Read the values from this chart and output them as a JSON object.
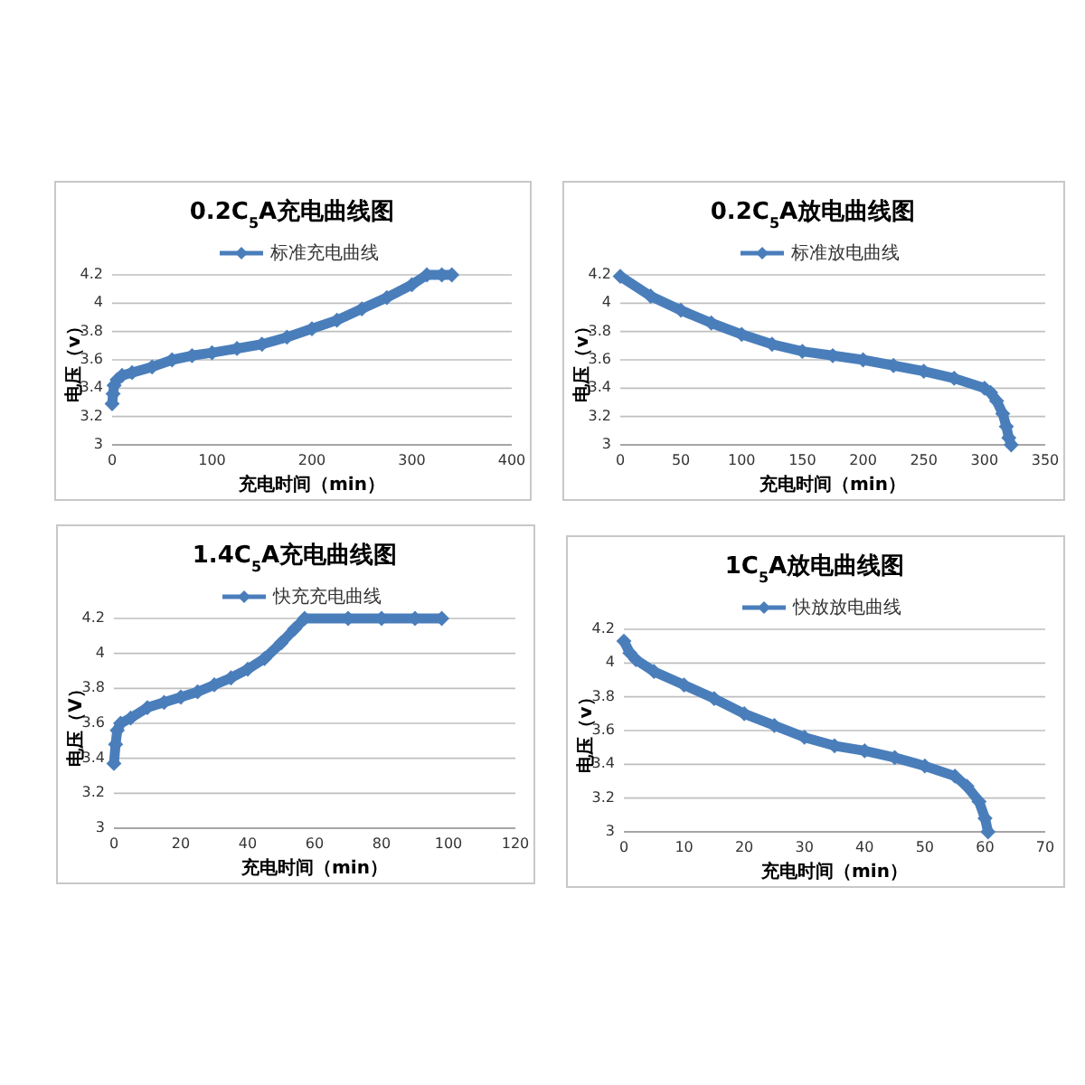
{
  "chart_data": [
    {
      "type": "line",
      "title": "0.2C$_{5}$A充电曲线图",
      "xlabel": "充电时间（min）",
      "ylabel": "电压（v）",
      "x": [
        0,
        1,
        2,
        5,
        10,
        20,
        40,
        60,
        80,
        100,
        125,
        150,
        175,
        200,
        225,
        250,
        275,
        300,
        315,
        330,
        340
      ],
      "series": [
        {
          "name": "标准充电曲线",
          "color": "#4a7ebb",
          "values": [
            3.29,
            3.36,
            3.42,
            3.46,
            3.49,
            3.51,
            3.55,
            3.6,
            3.63,
            3.65,
            3.68,
            3.71,
            3.76,
            3.82,
            3.88,
            3.96,
            4.04,
            4.13,
            4.2,
            4.2,
            4.2
          ]
        }
      ],
      "xlim": [
        0,
        400
      ],
      "xticks": [
        0,
        100,
        200,
        300,
        400
      ],
      "ylim": [
        3,
        4.2
      ],
      "yticks": [
        3,
        3.2,
        3.4,
        3.6,
        3.8,
        4,
        4.2
      ],
      "grid": "y",
      "legend": "top",
      "marker": "diamond"
    },
    {
      "type": "line",
      "title": "0.2C$_{5}$A放电曲线图",
      "xlabel": "充电时间（min）",
      "ylabel": "电压（v）",
      "x": [
        0,
        25,
        50,
        75,
        100,
        125,
        150,
        175,
        200,
        225,
        250,
        275,
        300,
        305,
        310,
        315,
        318,
        320,
        322
      ],
      "series": [
        {
          "name": "标准放电曲线",
          "color": "#4a7ebb",
          "values": [
            4.19,
            4.05,
            3.95,
            3.86,
            3.78,
            3.71,
            3.66,
            3.63,
            3.6,
            3.56,
            3.52,
            3.47,
            3.4,
            3.37,
            3.31,
            3.22,
            3.13,
            3.05,
            3.0
          ]
        }
      ],
      "xlim": [
        0,
        350
      ],
      "xticks": [
        0,
        50,
        100,
        150,
        200,
        250,
        300,
        350
      ],
      "ylim": [
        3,
        4.2
      ],
      "yticks": [
        3,
        3.2,
        3.4,
        3.6,
        3.8,
        4,
        4.2
      ],
      "grid": "y",
      "legend": "top",
      "marker": "diamond"
    },
    {
      "type": "line",
      "title": "1.4C$_{5}$A充电曲线图",
      "xlabel": "充电时间（min）",
      "ylabel": "电压（V）",
      "x": [
        0,
        0.5,
        1,
        2,
        5,
        10,
        15,
        20,
        25,
        30,
        35,
        40,
        45,
        50,
        54,
        57,
        70,
        80,
        90,
        98
      ],
      "series": [
        {
          "name": "快充充电曲线",
          "color": "#4a7ebb",
          "values": [
            3.37,
            3.48,
            3.56,
            3.6,
            3.63,
            3.69,
            3.72,
            3.75,
            3.78,
            3.82,
            3.86,
            3.91,
            3.97,
            4.06,
            4.14,
            4.2,
            4.2,
            4.2,
            4.2,
            4.2
          ]
        }
      ],
      "xlim": [
        0,
        120
      ],
      "xticks": [
        0,
        20,
        40,
        60,
        80,
        100,
        120
      ],
      "ylim": [
        3,
        4.2
      ],
      "yticks": [
        3,
        3.2,
        3.4,
        3.6,
        3.8,
        4,
        4.2
      ],
      "grid": "y",
      "legend": "top",
      "marker": "diamond"
    },
    {
      "type": "line",
      "title": "1C$_{5}$A放电曲线图",
      "xlabel": "充电时间（min）",
      "ylabel": "电压（v）",
      "x": [
        0,
        1,
        2,
        5,
        10,
        15,
        20,
        25,
        30,
        35,
        40,
        45,
        50,
        55,
        57,
        59,
        60,
        60.5
      ],
      "series": [
        {
          "name": "快放放电曲线",
          "color": "#4a7ebb",
          "values": [
            4.13,
            4.06,
            4.02,
            3.95,
            3.87,
            3.79,
            3.7,
            3.63,
            3.56,
            3.51,
            3.48,
            3.44,
            3.39,
            3.33,
            3.27,
            3.18,
            3.08,
            3.0
          ]
        }
      ],
      "xlim": [
        0,
        70
      ],
      "xticks": [
        0,
        10,
        20,
        30,
        40,
        50,
        60,
        70
      ],
      "ylim": [
        3,
        4.2
      ],
      "yticks": [
        3,
        3.2,
        3.4,
        3.6,
        3.8,
        4,
        4.2
      ],
      "grid": "y",
      "legend": "top",
      "marker": "diamond"
    }
  ]
}
